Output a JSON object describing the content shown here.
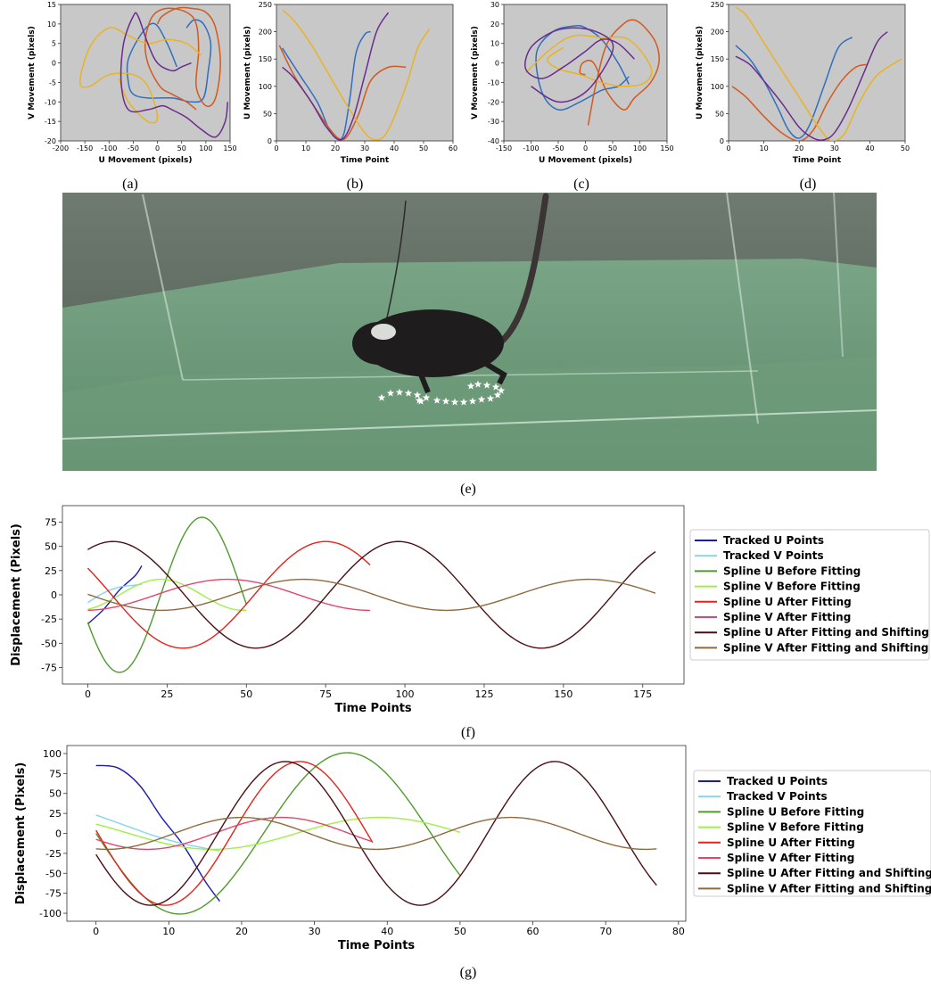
{
  "captions": {
    "a": "(a)",
    "b": "(b)",
    "c": "(c)",
    "d": "(d)",
    "e": "(e)",
    "f": "(f)",
    "g": "(g)"
  },
  "colors": {
    "c1": "#2f6fbf",
    "c2": "#d35a1e",
    "c3": "#e9b327",
    "c4": "#6a2c8f",
    "trackedU": "#1a1ab4",
    "trackedV": "#86d4ef",
    "splineUBefore": "#4e9a2c",
    "splineVBefore": "#9ef046",
    "splineUAfter": "#e3231b",
    "splineVAfter": "#e0476b",
    "splineUShift": "#4a0f14",
    "splineVShift": "#8f6a3e",
    "panelBg": "#c8c8c8"
  },
  "chart_data": [
    {
      "id": "a",
      "type": "line",
      "xlabel": "U Movement (pixels)",
      "ylabel": "V Movement (pixels)",
      "xlim": [
        -200,
        150
      ],
      "ylim": [
        -20,
        15
      ],
      "xticks": [
        -200,
        -150,
        -100,
        -50,
        0,
        50,
        100,
        150
      ],
      "yticks": [
        -20,
        -15,
        -10,
        -5,
        0,
        5,
        10,
        15
      ],
      "series": [
        {
          "color": "c1",
          "x": [
            40,
            20,
            -5,
            -30,
            -60,
            -60,
            -50,
            -20,
            30,
            70,
            95,
            105,
            110,
            95,
            75,
            60
          ],
          "y": [
            -1,
            5,
            10,
            8,
            1,
            -5,
            -8,
            -9,
            -9,
            -10,
            -9,
            -2,
            5,
            10,
            11,
            9
          ]
        },
        {
          "color": "c2",
          "x": [
            80,
            60,
            30,
            5,
            -20,
            -25,
            -10,
            20,
            60,
            80,
            85,
            80,
            100,
            120,
            130,
            120,
            100,
            70,
            40,
            10,
            0
          ],
          "y": [
            -12,
            -10,
            -8,
            -6,
            0,
            6,
            12,
            14,
            13,
            10,
            3,
            -6,
            -11,
            -9,
            0,
            9,
            13,
            14,
            14,
            12,
            10
          ]
        },
        {
          "color": "c3",
          "x": [
            90,
            60,
            20,
            -20,
            -60,
            -100,
            -140,
            -160,
            -140,
            -100,
            -50,
            -20,
            0,
            -20,
            -60,
            -80
          ],
          "y": [
            2,
            5,
            6,
            5,
            7,
            9,
            4,
            -5,
            -6,
            -3,
            -3,
            -6,
            -14,
            -15,
            -10,
            -4
          ]
        },
        {
          "color": "c4",
          "x": [
            145,
            140,
            120,
            90,
            60,
            30,
            10,
            -20,
            -60,
            -75,
            -70,
            -50,
            -40,
            -20,
            0,
            30,
            50,
            70
          ],
          "y": [
            -10,
            -15,
            -19,
            -17,
            -14,
            -12,
            -11,
            -12,
            -12,
            -5,
            5,
            12,
            12,
            5,
            0,
            -2,
            -1,
            0
          ]
        }
      ]
    },
    {
      "id": "b",
      "type": "line",
      "xlabel": "Time Point",
      "ylabel": "U Movement (pixels)",
      "xlim": [
        0,
        60
      ],
      "ylim": [
        0,
        250
      ],
      "xticks": [
        0,
        10,
        20,
        30,
        40,
        50,
        60
      ],
      "yticks": [
        0,
        50,
        100,
        150,
        200,
        250
      ],
      "series": [
        {
          "color": "c1",
          "x": [
            2,
            8,
            14,
            18,
            21,
            23,
            25,
            27,
            30,
            32
          ],
          "y": [
            170,
            120,
            70,
            20,
            3,
            15,
            80,
            160,
            195,
            200
          ]
        },
        {
          "color": "c2",
          "x": [
            1,
            6,
            12,
            17,
            21,
            24,
            28,
            32,
            38,
            44
          ],
          "y": [
            175,
            120,
            70,
            30,
            5,
            8,
            50,
            110,
            135,
            135
          ]
        },
        {
          "color": "c3",
          "x": [
            2,
            6,
            12,
            18,
            24,
            30,
            34,
            38,
            44,
            48,
            52
          ],
          "y": [
            240,
            220,
            175,
            120,
            65,
            15,
            2,
            20,
            100,
            170,
            205
          ]
        },
        {
          "color": "c4",
          "x": [
            2,
            6,
            12,
            17,
            22,
            26,
            30,
            34,
            38
          ],
          "y": [
            135,
            115,
            70,
            25,
            2,
            40,
            120,
            200,
            235
          ]
        }
      ]
    },
    {
      "id": "c",
      "type": "line",
      "xlabel": "U Movement (pixels)",
      "ylabel": "V Movement (pixels)",
      "xlim": [
        -150,
        150
      ],
      "ylim": [
        -40,
        30
      ],
      "xticks": [
        -150,
        -100,
        -50,
        0,
        50,
        100,
        150
      ],
      "yticks": [
        -40,
        -30,
        -20,
        -10,
        0,
        10,
        20,
        30
      ],
      "series": [
        {
          "color": "c1",
          "x": [
            80,
            60,
            30,
            0,
            -20,
            -60,
            -90,
            -80,
            -50,
            -10,
            30,
            60,
            80
          ],
          "y": [
            -11,
            0,
            12,
            18,
            19,
            16,
            5,
            -15,
            -24,
            -20,
            -14,
            -12,
            -7
          ]
        },
        {
          "color": "c2",
          "x": [
            0,
            -10,
            -5,
            15,
            40,
            70,
            90,
            120,
            135,
            130,
            110,
            90,
            70,
            40,
            20,
            5
          ],
          "y": [
            -6,
            -5,
            0,
            0,
            -15,
            -24,
            -18,
            -10,
            0,
            10,
            18,
            22,
            20,
            10,
            -10,
            -32
          ]
        },
        {
          "color": "c3",
          "x": [
            -110,
            -60,
            -20,
            30,
            80,
            120,
            110,
            70,
            30,
            -10,
            -50,
            -70,
            -40
          ],
          "y": [
            -5,
            8,
            14,
            13,
            12,
            -2,
            -10,
            -12,
            -10,
            -6,
            -3,
            2,
            8
          ]
        },
        {
          "color": "c4",
          "x": [
            90,
            60,
            30,
            0,
            -40,
            -80,
            -110,
            -100,
            -60,
            -20,
            20,
            50,
            40,
            0,
            -50,
            -100
          ],
          "y": [
            2,
            10,
            12,
            6,
            -2,
            -8,
            -3,
            8,
            16,
            18,
            16,
            10,
            0,
            -15,
            -20,
            -12
          ]
        }
      ]
    },
    {
      "id": "d",
      "type": "line",
      "xlabel": "Time Point",
      "ylabel": "U Movement (pixels)",
      "xlim": [
        0,
        50
      ],
      "ylim": [
        0,
        250
      ],
      "xticks": [
        0,
        10,
        20,
        30,
        40,
        50
      ],
      "yticks": [
        0,
        50,
        100,
        150,
        200,
        250
      ],
      "series": [
        {
          "color": "c1",
          "x": [
            2,
            6,
            10,
            14,
            17,
            20,
            23,
            27,
            31,
            35
          ],
          "y": [
            175,
            150,
            110,
            60,
            20,
            5,
            30,
            100,
            170,
            190
          ]
        },
        {
          "color": "c2",
          "x": [
            1,
            5,
            10,
            15,
            20,
            24,
            28,
            32,
            36,
            39
          ],
          "y": [
            100,
            80,
            45,
            15,
            0,
            20,
            70,
            110,
            135,
            140
          ]
        },
        {
          "color": "c3",
          "x": [
            2,
            5,
            10,
            15,
            20,
            25,
            28,
            30,
            33,
            37,
            42,
            49
          ],
          "y": [
            245,
            230,
            180,
            130,
            80,
            30,
            5,
            0,
            15,
            70,
            120,
            150
          ]
        },
        {
          "color": "c4",
          "x": [
            2,
            6,
            10,
            15,
            20,
            24,
            27,
            30,
            34,
            38,
            42,
            45
          ],
          "y": [
            155,
            140,
            110,
            70,
            25,
            5,
            2,
            15,
            60,
            120,
            180,
            200
          ]
        }
      ]
    },
    {
      "id": "f",
      "type": "line",
      "xlabel": "Time Points",
      "ylabel": "Displacement (Pixels)",
      "xlim": [
        -8,
        188
      ],
      "ylim": [
        -92,
        92
      ],
      "xticks": [
        0,
        25,
        50,
        75,
        100,
        125,
        150,
        175
      ],
      "yticks": [
        -75,
        -50,
        -25,
        0,
        25,
        50,
        75
      ],
      "legend": [
        "Tracked U Points",
        "Tracked V Points",
        "Spline U Before Fitting",
        "Spline V Before Fitting",
        "Spline U After Fitting",
        "Spline V After Fitting",
        "Spline U After Fitting and Shifting",
        "Spline V After Fitting and Shifting"
      ],
      "series": [
        {
          "name": "Tracked U Points",
          "color": "trackedU",
          "model": "pts",
          "x": [
            0,
            5,
            10,
            15,
            17
          ],
          "y": [
            -30,
            -15,
            5,
            20,
            30
          ]
        },
        {
          "name": "Tracked V Points",
          "color": "trackedV",
          "model": "pts",
          "x": [
            0,
            5,
            10,
            15,
            17
          ],
          "y": [
            -8,
            2,
            8,
            10,
            11
          ]
        },
        {
          "name": "Spline U Before Fitting",
          "color": "splineUBefore",
          "model": "sin",
          "amp": 80,
          "period": 52,
          "phase": -16,
          "x0": 0,
          "x1": 50
        },
        {
          "name": "Spline V Before Fitting",
          "color": "splineVBefore",
          "model": "sin",
          "amp": 16,
          "period": 52,
          "phase": 23,
          "x0": 0,
          "x1": 50
        },
        {
          "name": "Spline U After Fitting",
          "color": "splineUAfter",
          "model": "sin",
          "amp": 55,
          "period": 90,
          "phase": -15,
          "x0": 0,
          "x1": 89
        },
        {
          "name": "Spline V After Fitting",
          "color": "splineVAfter",
          "model": "sin",
          "amp": 16,
          "period": 90,
          "phase": 44,
          "x0": 0,
          "x1": 89
        },
        {
          "name": "Spline U After Fitting and Shifting",
          "color": "splineUShift",
          "model": "sin",
          "amp": 55,
          "period": 90,
          "phase": 8,
          "x0": 0,
          "x1": 179
        },
        {
          "name": "Spline V After Fitting and Shifting",
          "color": "splineVShift",
          "model": "sin",
          "amp": 16,
          "period": 90,
          "phase": -22,
          "x0": 0,
          "x1": 179
        }
      ]
    },
    {
      "id": "g",
      "type": "line",
      "xlabel": "Time Points",
      "ylabel": "Displacement (Pixels)",
      "xlim": [
        -4,
        81
      ],
      "ylim": [
        -110,
        110
      ],
      "xticks": [
        0,
        10,
        20,
        30,
        40,
        50,
        60,
        70,
        80
      ],
      "yticks": [
        -100,
        -75,
        -50,
        -25,
        0,
        25,
        50,
        75,
        100
      ],
      "legend": [
        "Tracked U Points",
        "Tracked V Points",
        "Spline U Before Fitting",
        "Spline V Before Fitting",
        "Spline U After Fitting",
        "Spline V After Fitting",
        "Spline U After Fitting and Shifting",
        "Spline V After Fitting and Shifting"
      ],
      "series": [
        {
          "name": "Tracked U Points",
          "color": "trackedU",
          "model": "pts",
          "x": [
            0,
            3,
            6,
            9,
            12,
            15,
            17
          ],
          "y": [
            85,
            82,
            60,
            20,
            -15,
            -60,
            -85
          ]
        },
        {
          "name": "Tracked V Points",
          "color": "trackedV",
          "model": "pts",
          "x": [
            0,
            4,
            8,
            12,
            17
          ],
          "y": [
            23,
            10,
            -3,
            -13,
            -22
          ]
        },
        {
          "name": "Spline U Before Fitting",
          "color": "splineUBefore",
          "model": "sin",
          "amp": 101,
          "period": 46,
          "phase": -11.5,
          "x0": 0,
          "x1": 50
        },
        {
          "name": "Spline V Before Fitting",
          "color": "splineVBefore",
          "model": "sin",
          "amp": 20,
          "period": 46,
          "phase": -7,
          "x0": 0,
          "x1": 50
        },
        {
          "name": "Spline U After Fitting",
          "color": "splineUAfter",
          "model": "sin",
          "amp": 90,
          "period": 37,
          "phase": -9,
          "x0": 0,
          "x1": 38
        },
        {
          "name": "Spline V After Fitting",
          "color": "splineVAfter",
          "model": "sin",
          "amp": 20,
          "period": 37,
          "phase": -11.5,
          "x0": 0,
          "x1": 38
        },
        {
          "name": "Spline U After Fitting and Shifting",
          "color": "splineUShift",
          "model": "sin",
          "amp": 90,
          "period": 37,
          "phase": -11,
          "x0": 0,
          "x1": 77
        },
        {
          "name": "Spline V After Fitting and Shifting",
          "color": "splineVShift",
          "model": "sin",
          "amp": 20,
          "period": 37,
          "phase": -17,
          "x0": 0,
          "x1": 77
        }
      ]
    }
  ]
}
